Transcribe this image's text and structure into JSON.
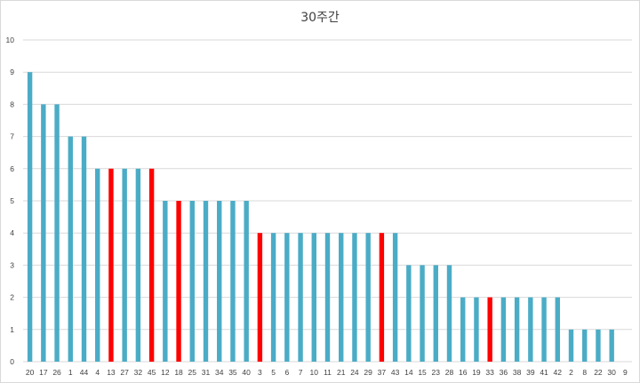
{
  "chart_data": {
    "type": "bar",
    "title": "30주간",
    "xlabel": "",
    "ylabel": "",
    "ylim": [
      0,
      10
    ],
    "yticks": [
      0,
      1,
      2,
      3,
      4,
      5,
      6,
      7,
      8,
      9,
      10
    ],
    "grid": true,
    "legend": "none",
    "categories": [
      "20",
      "17",
      "26",
      "1",
      "44",
      "4",
      "13",
      "27",
      "32",
      "45",
      "12",
      "18",
      "25",
      "31",
      "34",
      "35",
      "40",
      "3",
      "5",
      "6",
      "7",
      "10",
      "11",
      "21",
      "24",
      "29",
      "37",
      "43",
      "14",
      "15",
      "23",
      "28",
      "16",
      "19",
      "33",
      "36",
      "38",
      "39",
      "41",
      "42",
      "2",
      "8",
      "22",
      "30",
      "9"
    ],
    "values": [
      9,
      8,
      8,
      7,
      7,
      6,
      6,
      6,
      6,
      6,
      5,
      5,
      5,
      5,
      5,
      5,
      5,
      4,
      4,
      4,
      4,
      4,
      4,
      4,
      4,
      4,
      4,
      4,
      3,
      3,
      3,
      3,
      2,
      2,
      2,
      2,
      2,
      2,
      2,
      2,
      1,
      1,
      1,
      1,
      0
    ],
    "highlighted": [
      "13",
      "45",
      "18",
      "3",
      "37",
      "33"
    ],
    "colors": {
      "bar": "#4bacc6",
      "highlight": "#ff0000",
      "grid": "#d9d9d9",
      "text": "#404040"
    }
  }
}
